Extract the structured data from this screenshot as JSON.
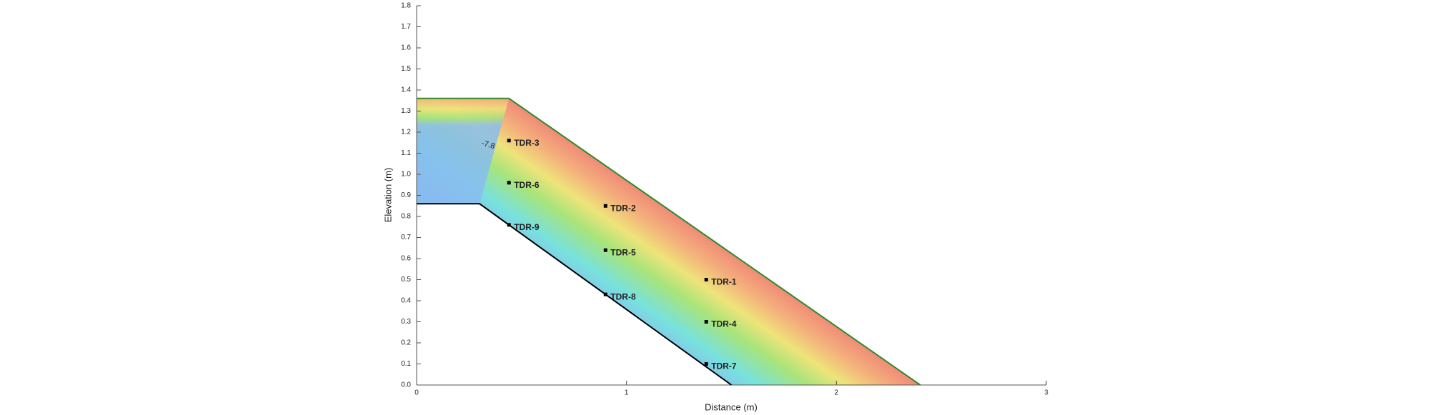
{
  "chart_data": {
    "type": "scatter",
    "x_label": "Distance (m)",
    "y_label": "Elevation (m)",
    "xlim": [
      0,
      3
    ],
    "ylim": [
      0,
      1.8
    ],
    "xticks": [
      0,
      1,
      2,
      3
    ],
    "yticks": [
      {
        "value": 0,
        "label": "0.0"
      },
      0.1,
      0.2,
      0.3,
      0.4,
      0.5,
      0.6,
      0.7,
      0.8,
      0.9,
      {
        "value": 1,
        "label": "1.0"
      },
      1.1,
      1.2,
      1.3,
      1.4,
      1.5,
      1.6,
      1.7,
      1.8
    ],
    "categories": [
      "TDR-1",
      "TDR-2",
      "TDR-3",
      "TDR-4",
      "TDR-5",
      "TDR-6",
      "TDR-7",
      "TDR-8",
      "TDR-9"
    ],
    "x": [
      1.38,
      0.9,
      0.44,
      1.38,
      0.9,
      0.44,
      1.38,
      0.9,
      0.44
    ],
    "values": [
      0.5,
      0.85,
      1.16,
      0.3,
      0.64,
      0.96,
      0.1,
      0.43,
      0.76
    ],
    "color": "#000000",
    "surface": {
      "x": [
        0,
        0.44,
        2.4
      ],
      "y": [
        1.36,
        1.36,
        0
      ],
      "color": "#2e8b2e"
    },
    "base": {
      "x": [
        0,
        0.3,
        1.5
      ],
      "y": [
        0.86,
        0.86,
        0
      ],
      "color": "#000000"
    },
    "annotation": "-7.8"
  }
}
